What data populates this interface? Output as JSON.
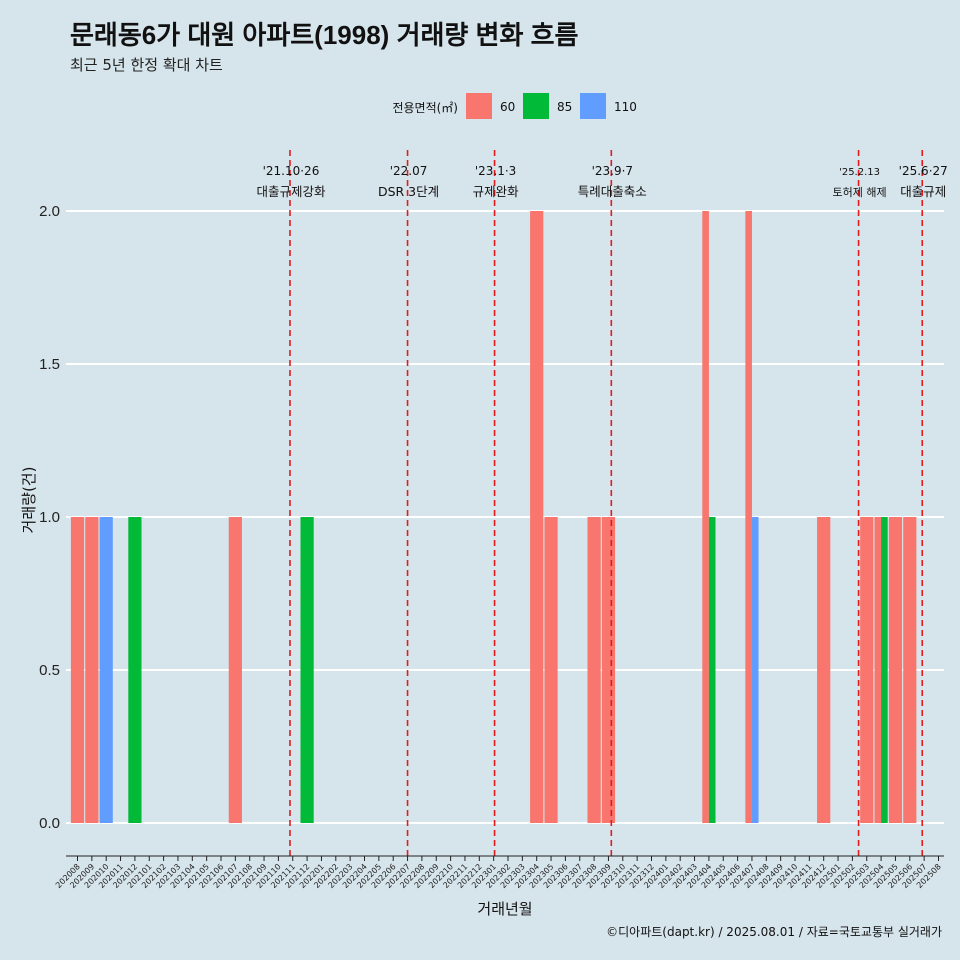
{
  "chart_data": {
    "type": "bar",
    "title": "문래동6가 대원 아파트(1998) 거래량 변화 흐름",
    "subtitle": "최근 5년 한정 확대 차트",
    "xlabel": "거래년월",
    "ylabel": "거래량(건)",
    "ylim": [
      0,
      2.0
    ],
    "yticks": [
      "0.0",
      "0.5",
      "1.0",
      "1.5",
      "2.0"
    ],
    "ytick_values": [
      0,
      0.5,
      1.0,
      1.5,
      2.0
    ],
    "legend_title": "전용면적(㎡)",
    "legend_position": "top",
    "grid": true,
    "categories": [
      "202008",
      "202009",
      "202010",
      "202011",
      "202012",
      "202101",
      "202102",
      "202103",
      "202104",
      "202105",
      "202106",
      "202107",
      "202108",
      "202109",
      "202110",
      "202111",
      "202112",
      "202201",
      "202202",
      "202203",
      "202204",
      "202205",
      "202206",
      "202207",
      "202208",
      "202209",
      "202210",
      "202211",
      "202212",
      "202301",
      "202302",
      "202303",
      "202304",
      "202305",
      "202306",
      "202307",
      "202308",
      "202309",
      "202310",
      "202311",
      "202312",
      "202401",
      "202402",
      "202403",
      "202404",
      "202405",
      "202406",
      "202407",
      "202408",
      "202409",
      "202410",
      "202411",
      "202412",
      "202501",
      "202502",
      "202503",
      "202504",
      "202505",
      "202506",
      "202507",
      "202508"
    ],
    "series": [
      {
        "name": "60",
        "color": "#f8766d",
        "values": [
          1,
          1,
          0,
          0,
          0,
          0,
          0,
          0,
          0,
          0,
          0,
          1,
          0,
          0,
          0,
          0,
          0,
          0,
          0,
          0,
          0,
          0,
          0,
          0,
          0,
          0,
          0,
          0,
          0,
          0,
          0,
          0,
          2,
          1,
          0,
          0,
          1,
          1,
          0,
          0,
          0,
          0,
          0,
          0,
          2,
          0,
          0,
          2,
          0,
          0,
          0,
          0,
          1,
          0,
          0,
          1,
          1,
          1,
          1,
          0,
          0
        ]
      },
      {
        "name": "85",
        "color": "#00ba38",
        "values": [
          0,
          0,
          0,
          0,
          1,
          0,
          0,
          0,
          0,
          0,
          0,
          0,
          0,
          0,
          0,
          0,
          1,
          0,
          0,
          0,
          0,
          0,
          0,
          0,
          0,
          0,
          0,
          0,
          0,
          0,
          0,
          0,
          0,
          0,
          0,
          0,
          0,
          0,
          0,
          0,
          0,
          0,
          0,
          0,
          1,
          0,
          0,
          0,
          0,
          0,
          0,
          0,
          0,
          0,
          0,
          0,
          1,
          0,
          0,
          0,
          0
        ]
      },
      {
        "name": "110",
        "color": "#619cff",
        "values": [
          0,
          0,
          1,
          0,
          0,
          0,
          0,
          0,
          0,
          0,
          0,
          0,
          0,
          0,
          0,
          0,
          0,
          0,
          0,
          0,
          0,
          0,
          0,
          0,
          0,
          0,
          0,
          0,
          0,
          0,
          0,
          0,
          0,
          0,
          0,
          0,
          0,
          0,
          0,
          0,
          0,
          0,
          0,
          0,
          0,
          0,
          0,
          1,
          0,
          0,
          0,
          0,
          0,
          0,
          0,
          0,
          0,
          0,
          0,
          0,
          0
        ]
      }
    ],
    "events": [
      {
        "date": "'21.10·26",
        "label": "대출규제강화",
        "at": "2021-10-26"
      },
      {
        "date": "'22.07",
        "label": "DSR 3단계",
        "at": "2022-07-01"
      },
      {
        "date": "'23.1·3",
        "label": "규제완화",
        "at": "2023-01-03"
      },
      {
        "date": "'23.9·7",
        "label": "특례대출축소",
        "at": "2023-09-07"
      },
      {
        "date": "'25.2.13",
        "label": "토허제 해제",
        "at": "2025-02-13"
      },
      {
        "date": "'25.6·27",
        "label": "대출규제",
        "at": "2025-06-27"
      }
    ],
    "caption": "©디아파트(dapt.kr) / 2025.08.01 / 자료=국토교통부 실거래가"
  }
}
